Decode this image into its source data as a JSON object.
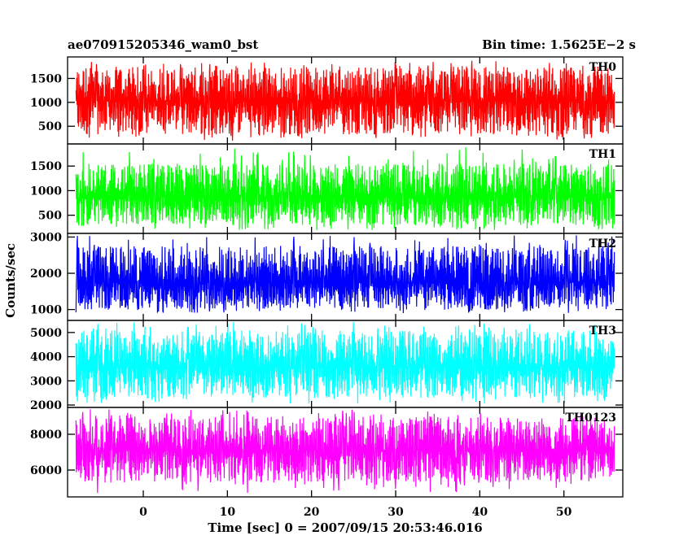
{
  "header": {
    "title_left": "ae070915205346_wam0_bst",
    "title_right": "Bin time: 1.5625E−2 s"
  },
  "chart_data": {
    "type": "line",
    "xlabel": "Time [sec] 0 = 2007/09/15 20:53:46.016",
    "ylabel": "Counts/sec",
    "xlim": [
      -9,
      57
    ],
    "data_x_range": [
      -8,
      56
    ],
    "x_ticks": [
      0,
      10,
      20,
      30,
      40,
      50
    ],
    "x_tick_labels": [
      "0",
      "10",
      "20",
      "30",
      "40",
      "50"
    ],
    "panels": [
      {
        "name": "TH0",
        "color": "#ff0000",
        "ylim": [
          130,
          1950
        ],
        "y_ticks": [
          500,
          1000,
          1500
        ],
        "y_tick_labels": [
          "500",
          "1000",
          "1500"
        ],
        "mean": 1030,
        "typical_low": 330,
        "typical_high": 1750,
        "spike_max": 1900,
        "dip_min": 180
      },
      {
        "name": "TH1",
        "color": "#00ff00",
        "ylim": [
          130,
          1950
        ],
        "y_ticks": [
          500,
          1000,
          1500
        ],
        "y_tick_labels": [
          "500",
          "1000",
          "1500"
        ],
        "mean": 880,
        "typical_low": 300,
        "typical_high": 1550,
        "spike_max": 1900,
        "dip_min": 200
      },
      {
        "name": "TH2",
        "color": "#0000ff",
        "ylim": [
          700,
          3100
        ],
        "y_ticks": [
          1000,
          2000,
          3000
        ],
        "y_tick_labels": [
          "1000",
          "2000",
          "3000"
        ],
        "mean": 1750,
        "typical_low": 1000,
        "typical_high": 2750,
        "spike_max": 3050,
        "dip_min": 900
      },
      {
        "name": "TH3",
        "color": "#00ffff",
        "ylim": [
          1900,
          5500
        ],
        "y_ticks": [
          2000,
          3000,
          4000,
          5000
        ],
        "y_tick_labels": [
          "2000",
          "3000",
          "4000",
          "5000"
        ],
        "mean": 3600,
        "typical_low": 2300,
        "typical_high": 5100,
        "spike_max": 5450,
        "dip_min": 2050
      },
      {
        "name": "TH0123",
        "color": "#ff00ff",
        "ylim": [
          4500,
          9500
        ],
        "y_ticks": [
          6000,
          8000
        ],
        "y_tick_labels": [
          "6000",
          "8000"
        ],
        "mean": 7100,
        "typical_low": 5300,
        "typical_high": 9000,
        "spike_max": 9400,
        "dip_min": 4700
      }
    ]
  }
}
